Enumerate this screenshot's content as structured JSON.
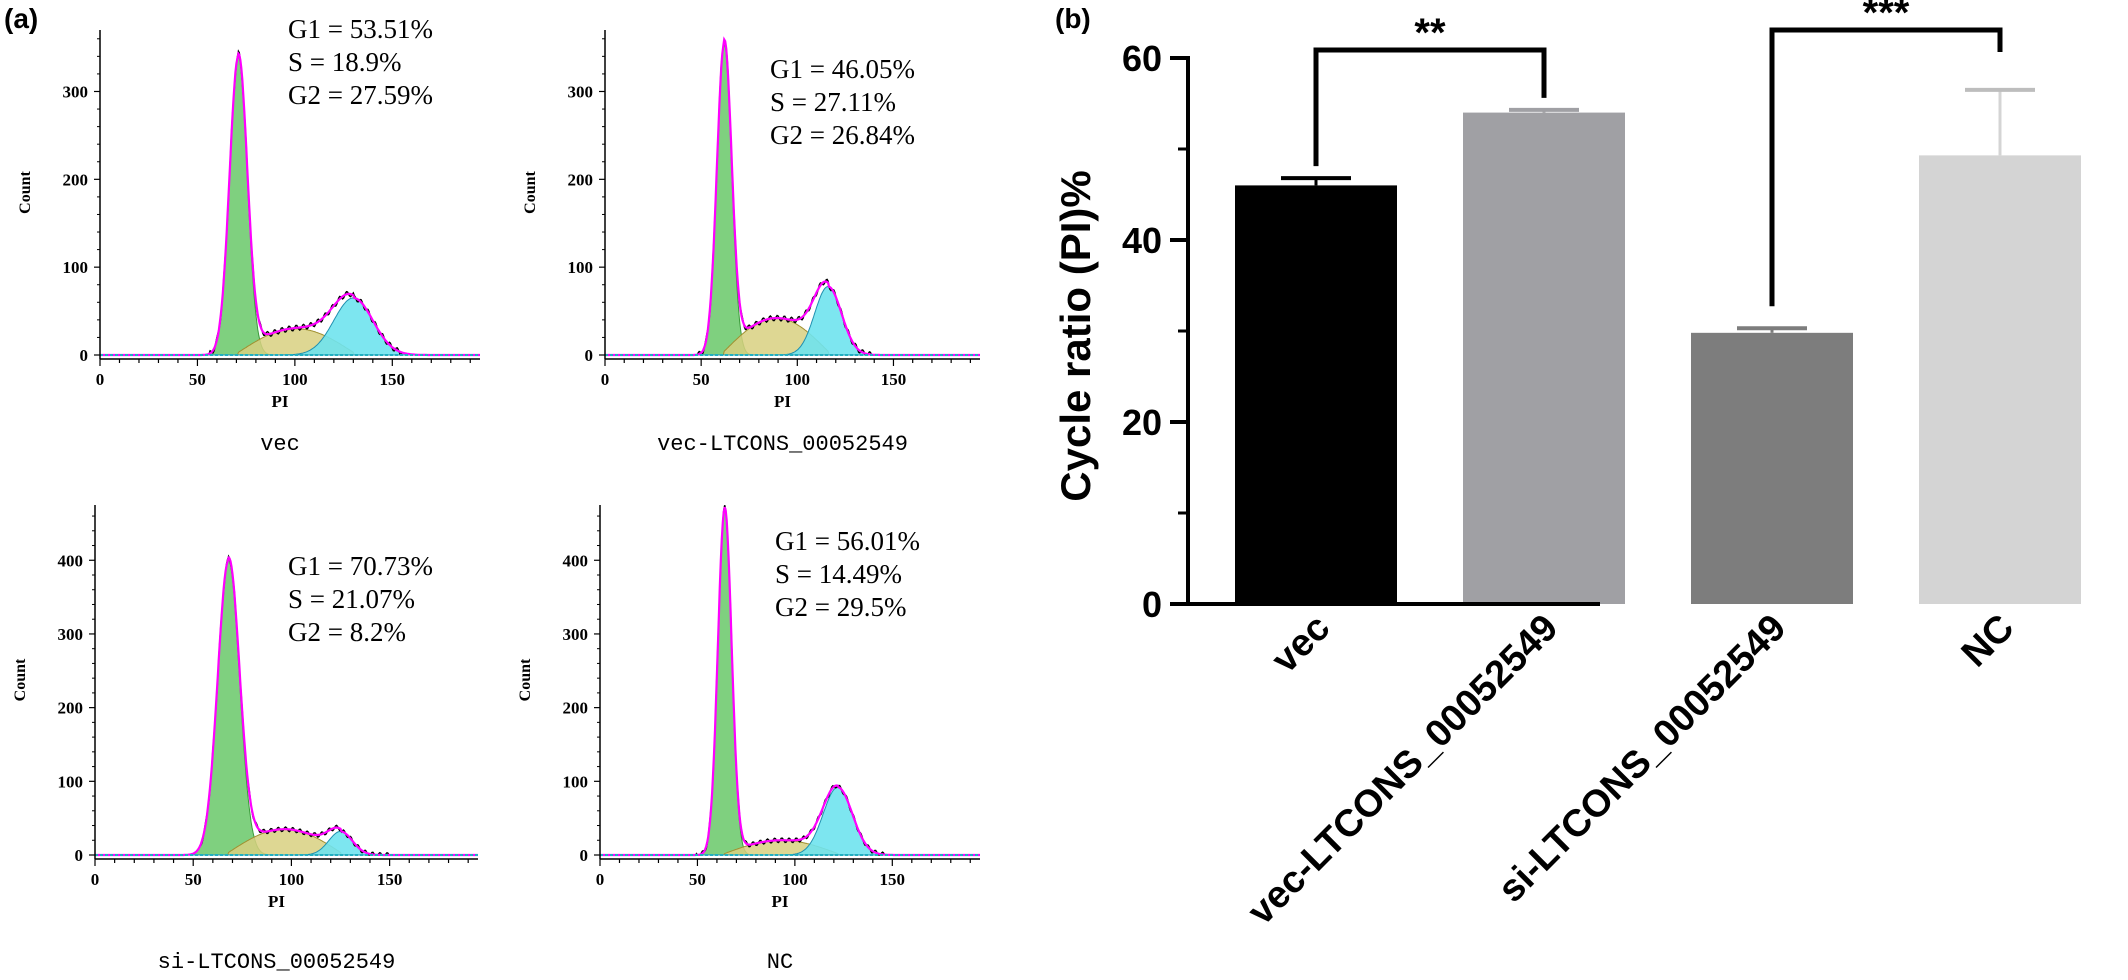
{
  "panel_labels": {
    "a": "(a)",
    "b": "(b)"
  },
  "colors": {
    "g1_fill": "#7fd07f",
    "s_fill": "#d8d080",
    "g2_fill": "#6fe3ee",
    "fit_line": "#ff00ff",
    "data_line": "#000000",
    "bar_vec": "#000000",
    "bar_vec_ltcons": "#a0a0a4",
    "bar_si_ltcons": "#7d7d7d",
    "bar_nc": "#d4d4d4"
  },
  "chart_data": [
    {
      "type": "area",
      "id": "hist-vec",
      "xlabel": "PI",
      "ylabel": "Count",
      "caption": "vec",
      "xticks": [
        0,
        50,
        100,
        150
      ],
      "yticks": [
        0,
        100,
        200,
        300
      ],
      "xlim": [
        0,
        195
      ],
      "ylim": [
        0,
        370
      ],
      "g1_peak": {
        "x": 71,
        "height": 340,
        "sigma": 4.5
      },
      "g2_peak": {
        "x": 130,
        "height": 65,
        "sigma": 10
      },
      "s_phase_level": 30,
      "stats": [
        "G1 = 53.51%",
        "S = 18.9%",
        "G2 = 27.59%"
      ]
    },
    {
      "type": "area",
      "id": "hist-vec-ltcons",
      "xlabel": "PI",
      "ylabel": "Count",
      "caption": "vec-LTCONS_00052549",
      "xticks": [
        0,
        50,
        100,
        150
      ],
      "yticks": [
        0,
        100,
        200,
        300
      ],
      "xlim": [
        0,
        195
      ],
      "ylim": [
        0,
        370
      ],
      "g1_peak": {
        "x": 62,
        "height": 355,
        "sigma": 3.8
      },
      "g2_peak": {
        "x": 116,
        "height": 78,
        "sigma": 7
      },
      "s_phase_level": 42,
      "stats": [
        "G1 = 46.05%",
        "S = 27.11%",
        "G2 = 26.84%"
      ]
    },
    {
      "type": "area",
      "id": "hist-si-ltcons",
      "xlabel": "PI",
      "ylabel": "Count",
      "caption": "si-LTCONS_00052549",
      "xticks": [
        0,
        50,
        100,
        150
      ],
      "yticks": [
        0,
        100,
        200,
        300,
        400
      ],
      "xlim": [
        0,
        195
      ],
      "ylim": [
        0,
        475
      ],
      "g1_peak": {
        "x": 68,
        "height": 400,
        "sigma": 5.5
      },
      "g2_peak": {
        "x": 125,
        "height": 32,
        "sigma": 6
      },
      "s_phase_level": 35,
      "stats": [
        "G1 = 70.73%",
        "S = 21.07%",
        "G2 = 8.2%"
      ]
    },
    {
      "type": "area",
      "id": "hist-nc",
      "xlabel": "PI",
      "ylabel": "Count",
      "caption": "NC",
      "xticks": [
        0,
        50,
        100,
        150
      ],
      "yticks": [
        0,
        100,
        200,
        300,
        400
      ],
      "xlim": [
        0,
        195
      ],
      "ylim": [
        0,
        475
      ],
      "g1_peak": {
        "x": 64,
        "height": 470,
        "sigma": 3.5
      },
      "g2_peak": {
        "x": 122,
        "height": 92,
        "sigma": 7.5
      },
      "s_phase_level": 20,
      "stats": [
        "G1 = 56.01%",
        "S = 14.49%",
        "G2 = 29.5%"
      ]
    },
    {
      "type": "bar",
      "id": "cycle-ratio",
      "ylabel": "Cycle ratio (PI)%",
      "categories": [
        "vec",
        "vec-LTCONS_00052549",
        "si-LTCONS_00052549",
        "NC"
      ],
      "values": [
        46,
        54,
        29.8,
        49.3
      ],
      "errors": [
        0.8,
        0.3,
        0.5,
        7.2
      ],
      "ylim": [
        0,
        60
      ],
      "yticks": [
        0,
        20,
        40,
        60
      ],
      "significance": [
        {
          "between": [
            0,
            1
          ],
          "label": "**"
        },
        {
          "between": [
            2,
            3
          ],
          "label": "***"
        }
      ]
    }
  ]
}
